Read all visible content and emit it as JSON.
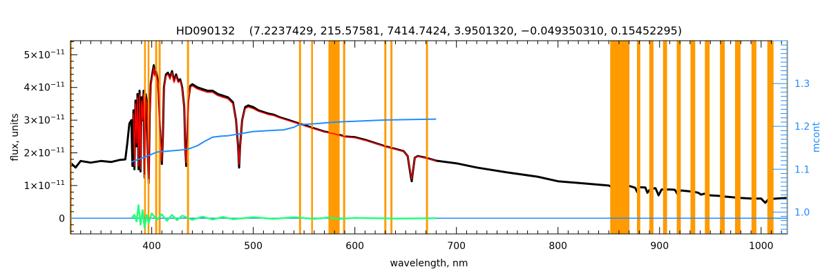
{
  "chart_data": {
    "type": "line",
    "title": "HD090132    (7.2237429, 215.57581, 7414.7424, 3.9501320, −0.049350310, 0.15452295)",
    "xlabel": "wavelength, nm",
    "ylabel": "flux, units",
    "y2label": "mcont",
    "xlim": [
      320,
      1026
    ],
    "ylim": [
      -4.8e-12,
      5.43e-11
    ],
    "y2lim": [
      0.949,
      1.4
    ],
    "xticks": [
      400,
      500,
      600,
      700,
      800,
      900,
      1000
    ],
    "xtick_labels": [
      "400",
      "500",
      "600",
      "700",
      "800",
      "900",
      "1000"
    ],
    "yticks": [
      {
        "value": 0,
        "base": "0",
        "exp": ""
      },
      {
        "value": 1e-11,
        "base": "1×10",
        "exp": "−11"
      },
      {
        "value": 2e-11,
        "base": "2×10",
        "exp": "−11"
      },
      {
        "value": 3e-11,
        "base": "3×10",
        "exp": "−11"
      },
      {
        "value": 4e-11,
        "base": "4×10",
        "exp": "−11"
      },
      {
        "value": 5e-11,
        "base": "5×10",
        "exp": "−11"
      }
    ],
    "y2ticks": [
      1.0,
      1.1,
      1.2,
      1.3
    ],
    "y2tick_labels": [
      "1.0",
      "1.1",
      "1.2",
      "1.3"
    ],
    "colors": {
      "observed": "#000000",
      "model": "#ff0000",
      "mcont": "#1e8cff",
      "residual": "#22ff77",
      "masked": "#ff9a00",
      "axis2": "#1e8cff"
    },
    "masked_bands_nm": [
      [
        319.5,
        321
      ],
      [
        392.5,
        394
      ],
      [
        396,
        397.4
      ],
      [
        403.4,
        405.4
      ],
      [
        406.8,
        408.8
      ],
      [
        434.7,
        436.7
      ],
      [
        545,
        547
      ],
      [
        557,
        558.5
      ],
      [
        574,
        585
      ],
      [
        588.4,
        590.5
      ],
      [
        629,
        631
      ],
      [
        635,
        637
      ],
      [
        670,
        672
      ],
      [
        851.4,
        870.3
      ],
      [
        877.7,
        881
      ],
      [
        889.9,
        894
      ],
      [
        903.4,
        907.4
      ],
      [
        916.9,
        920.9
      ],
      [
        930.4,
        935.1
      ],
      [
        944.6,
        949.3
      ],
      [
        959.5,
        964.2
      ],
      [
        974.3,
        979.7
      ],
      [
        990.5,
        995.3
      ],
      [
        1006.1,
        1012.2
      ],
      [
        1025,
        1026
      ]
    ],
    "series": [
      {
        "name": "observed",
        "axis": "left",
        "unit_scale": 1e-11,
        "points": [
          [
            320,
            1.7
          ],
          [
            325,
            1.55
          ],
          [
            330,
            1.75
          ],
          [
            340,
            1.7
          ],
          [
            350,
            1.75
          ],
          [
            360,
            1.72
          ],
          [
            368,
            1.78
          ],
          [
            374,
            1.8
          ],
          [
            376,
            2.3
          ],
          [
            378,
            2.9
          ],
          [
            380,
            3.0
          ],
          [
            381,
            1.6
          ],
          [
            382,
            3.3
          ],
          [
            383,
            1.5
          ],
          [
            384,
            3.6
          ],
          [
            385,
            2.2
          ],
          [
            386,
            3.8
          ],
          [
            387,
            1.5
          ],
          [
            388,
            3.9
          ],
          [
            389,
            1.43
          ],
          [
            390,
            3.7
          ],
          [
            391,
            3.0
          ],
          [
            392,
            3.9
          ],
          [
            393,
            1.24
          ],
          [
            394,
            3.8
          ],
          [
            395,
            3.6
          ],
          [
            396,
            2.4
          ],
          [
            397,
            1.07
          ],
          [
            398,
            3.2
          ],
          [
            399,
            4.1
          ],
          [
            401,
            4.5
          ],
          [
            402,
            4.68
          ],
          [
            403,
            4.4
          ],
          [
            404,
            4.6
          ],
          [
            406,
            4.2
          ],
          [
            407,
            3.8
          ],
          [
            408,
            2.8
          ],
          [
            410,
            1.66
          ],
          [
            411,
            2.5
          ],
          [
            412,
            4.0
          ],
          [
            414,
            4.4
          ],
          [
            416,
            4.45
          ],
          [
            418,
            4.3
          ],
          [
            420,
            4.5
          ],
          [
            422,
            4.2
          ],
          [
            424,
            4.4
          ],
          [
            426,
            4.2
          ],
          [
            428,
            4.25
          ],
          [
            430,
            4.0
          ],
          [
            432,
            3.4
          ],
          [
            433,
            2.2
          ],
          [
            434,
            1.6
          ],
          [
            435,
            2.4
          ],
          [
            436,
            3.6
          ],
          [
            438,
            4.05
          ],
          [
            440,
            4.1
          ],
          [
            445,
            4.0
          ],
          [
            450,
            3.95
          ],
          [
            455,
            3.9
          ],
          [
            460,
            3.9
          ],
          [
            465,
            3.8
          ],
          [
            470,
            3.75
          ],
          [
            475,
            3.7
          ],
          [
            480,
            3.55
          ],
          [
            483,
            3.0
          ],
          [
            485,
            2.2
          ],
          [
            486,
            1.55
          ],
          [
            487,
            2.2
          ],
          [
            489,
            3.0
          ],
          [
            492,
            3.4
          ],
          [
            495,
            3.45
          ],
          [
            500,
            3.4
          ],
          [
            505,
            3.3
          ],
          [
            510,
            3.25
          ],
          [
            515,
            3.2
          ],
          [
            520,
            3.17
          ],
          [
            525,
            3.1
          ],
          [
            530,
            3.05
          ],
          [
            535,
            3.0
          ],
          [
            540,
            2.95
          ],
          [
            545,
            2.9
          ],
          [
            550,
            2.85
          ],
          [
            560,
            2.75
          ],
          [
            570,
            2.65
          ],
          [
            580,
            2.6
          ],
          [
            590,
            2.5
          ],
          [
            600,
            2.48
          ],
          [
            610,
            2.4
          ],
          [
            620,
            2.3
          ],
          [
            630,
            2.2
          ],
          [
            640,
            2.12
          ],
          [
            648,
            2.05
          ],
          [
            652,
            1.9
          ],
          [
            655,
            1.3
          ],
          [
            656,
            1.13
          ],
          [
            657,
            1.4
          ],
          [
            659,
            1.85
          ],
          [
            662,
            1.9
          ],
          [
            670,
            1.85
          ],
          [
            680,
            1.76
          ],
          [
            700,
            1.68
          ],
          [
            720,
            1.55
          ],
          [
            750,
            1.4
          ],
          [
            780,
            1.27
          ],
          [
            800,
            1.13
          ],
          [
            820,
            1.08
          ],
          [
            850,
            1.0
          ],
          [
            852,
            0.97
          ],
          [
            871,
            0.98
          ],
          [
            876,
            0.93
          ],
          [
            878,
            0.8
          ],
          [
            880,
            0.95
          ],
          [
            886,
            0.94
          ],
          [
            888,
            0.78
          ],
          [
            891,
            0.9
          ],
          [
            896,
            0.92
          ],
          [
            899,
            0.7
          ],
          [
            902,
            0.88
          ],
          [
            910,
            0.88
          ],
          [
            915,
            0.87
          ],
          [
            918,
            0.72
          ],
          [
            921,
            0.85
          ],
          [
            930,
            0.82
          ],
          [
            935,
            0.8
          ],
          [
            938,
            0.78
          ],
          [
            941,
            0.72
          ],
          [
            944,
            0.75
          ],
          [
            950,
            0.7
          ],
          [
            960,
            0.68
          ],
          [
            965,
            0.66
          ],
          [
            980,
            0.62
          ],
          [
            990,
            0.6
          ],
          [
            1000,
            0.6
          ],
          [
            1004,
            0.47
          ],
          [
            1007,
            0.58
          ],
          [
            1015,
            0.6
          ],
          [
            1025,
            0.62
          ]
        ]
      },
      {
        "name": "model",
        "axis": "left",
        "unit_scale": 1e-11,
        "points": [
          [
            382,
            3.2
          ],
          [
            383,
            1.6
          ],
          [
            384,
            3.5
          ],
          [
            385,
            2.3
          ],
          [
            386,
            3.7
          ],
          [
            387,
            1.6
          ],
          [
            388,
            3.8
          ],
          [
            389,
            1.5
          ],
          [
            390,
            3.6
          ],
          [
            391,
            3.0
          ],
          [
            392,
            3.8
          ],
          [
            393,
            1.35
          ],
          [
            394,
            3.7
          ],
          [
            395,
            3.5
          ],
          [
            396,
            2.4
          ],
          [
            397,
            1.2
          ],
          [
            398,
            3.1
          ],
          [
            399,
            4.0
          ],
          [
            401,
            4.4
          ],
          [
            402,
            4.6
          ],
          [
            403,
            4.35
          ],
          [
            404,
            4.5
          ],
          [
            406,
            4.15
          ],
          [
            407,
            3.75
          ],
          [
            408,
            2.8
          ],
          [
            410,
            1.75
          ],
          [
            411,
            2.5
          ],
          [
            412,
            3.95
          ],
          [
            414,
            4.35
          ],
          [
            416,
            4.4
          ],
          [
            418,
            4.25
          ],
          [
            420,
            4.45
          ],
          [
            422,
            4.15
          ],
          [
            424,
            4.35
          ],
          [
            426,
            4.15
          ],
          [
            428,
            4.2
          ],
          [
            430,
            3.95
          ],
          [
            432,
            3.4
          ],
          [
            433,
            2.2
          ],
          [
            434,
            1.7
          ],
          [
            435,
            2.4
          ],
          [
            436,
            3.55
          ],
          [
            438,
            4.0
          ],
          [
            440,
            4.05
          ],
          [
            445,
            3.95
          ],
          [
            450,
            3.9
          ],
          [
            455,
            3.85
          ],
          [
            460,
            3.85
          ],
          [
            465,
            3.75
          ],
          [
            470,
            3.7
          ],
          [
            475,
            3.65
          ],
          [
            480,
            3.5
          ],
          [
            483,
            3.0
          ],
          [
            485,
            2.2
          ],
          [
            486,
            1.65
          ],
          [
            487,
            2.2
          ],
          [
            489,
            3.0
          ],
          [
            492,
            3.35
          ],
          [
            495,
            3.4
          ],
          [
            500,
            3.35
          ],
          [
            505,
            3.27
          ],
          [
            510,
            3.22
          ],
          [
            515,
            3.17
          ],
          [
            520,
            3.14
          ],
          [
            525,
            3.08
          ],
          [
            530,
            3.03
          ],
          [
            535,
            2.98
          ],
          [
            540,
            2.93
          ],
          [
            545,
            2.88
          ],
          [
            550,
            2.83
          ],
          [
            560,
            2.73
          ],
          [
            570,
            2.64
          ],
          [
            580,
            2.58
          ],
          [
            590,
            2.49
          ],
          [
            600,
            2.46
          ],
          [
            610,
            2.38
          ],
          [
            620,
            2.29
          ],
          [
            630,
            2.19
          ],
          [
            640,
            2.11
          ],
          [
            648,
            2.04
          ],
          [
            652,
            1.9
          ],
          [
            655,
            1.35
          ],
          [
            656,
            1.2
          ],
          [
            657,
            1.42
          ],
          [
            659,
            1.85
          ],
          [
            662,
            1.89
          ],
          [
            670,
            1.84
          ],
          [
            680,
            1.75
          ]
        ]
      },
      {
        "name": "mcont",
        "axis": "right",
        "points": [
          [
            380,
            1.117
          ],
          [
            395,
            1.13
          ],
          [
            405,
            1.14
          ],
          [
            430,
            1.145
          ],
          [
            437,
            1.148
          ],
          [
            445,
            1.155
          ],
          [
            452,
            1.165
          ],
          [
            460,
            1.175
          ],
          [
            468,
            1.177
          ],
          [
            475,
            1.178
          ],
          [
            500,
            1.188
          ],
          [
            530,
            1.192
          ],
          [
            540,
            1.198
          ],
          [
            545,
            1.204
          ],
          [
            560,
            1.206
          ],
          [
            580,
            1.21
          ],
          [
            600,
            1.212
          ],
          [
            630,
            1.215
          ],
          [
            655,
            1.216
          ],
          [
            680,
            1.217
          ]
        ]
      },
      {
        "name": "zero-line",
        "axis": "left",
        "unit_scale": 1e-11,
        "points": [
          [
            320,
            0
          ],
          [
            1026,
            0
          ]
        ]
      },
      {
        "name": "residual",
        "axis": "left",
        "unit_scale": 1e-11,
        "points": [
          [
            380,
            0.0
          ],
          [
            383,
            0.1
          ],
          [
            385,
            -0.1
          ],
          [
            387,
            0.4
          ],
          [
            389,
            -0.2
          ],
          [
            391,
            0.25
          ],
          [
            393,
            -0.3
          ],
          [
            395,
            0.1
          ],
          [
            397,
            -0.15
          ],
          [
            400,
            0.15
          ],
          [
            405,
            -0.05
          ],
          [
            410,
            0.12
          ],
          [
            415,
            -0.08
          ],
          [
            420,
            0.1
          ],
          [
            425,
            -0.06
          ],
          [
            430,
            0.08
          ],
          [
            440,
            -0.05
          ],
          [
            450,
            0.05
          ],
          [
            460,
            -0.04
          ],
          [
            470,
            0.04
          ],
          [
            480,
            -0.03
          ],
          [
            500,
            0.03
          ],
          [
            520,
            -0.02
          ],
          [
            540,
            0.03
          ],
          [
            560,
            -0.02
          ],
          [
            574,
            0.02
          ],
          [
            585,
            -0.02
          ],
          [
            600,
            0.01
          ],
          [
            640,
            -0.01
          ],
          [
            680,
            0
          ]
        ]
      }
    ]
  }
}
